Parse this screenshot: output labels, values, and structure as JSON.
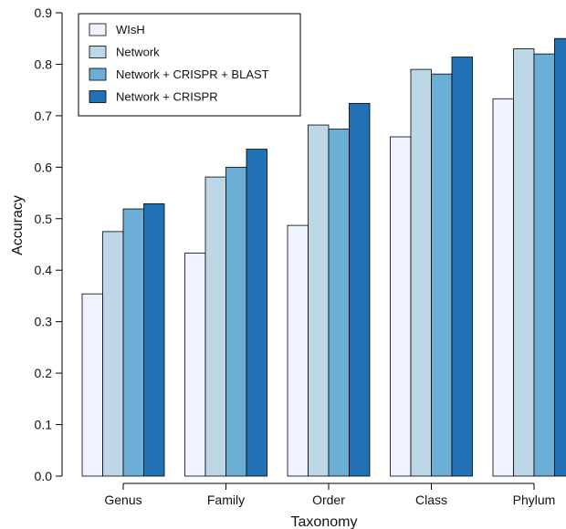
{
  "chart_data": {
    "type": "bar",
    "xlabel": "Taxonomy",
    "ylabel": "Accuracy",
    "ylim": [
      0,
      0.9
    ],
    "yticks": [
      "0.0",
      "0.1",
      "0.2",
      "0.3",
      "0.4",
      "0.5",
      "0.6",
      "0.7",
      "0.8",
      "0.9"
    ],
    "categories": [
      "Genus",
      "Family",
      "Order",
      "Class",
      "Phylum"
    ],
    "grid": false,
    "legend_position": "top-left",
    "series": [
      {
        "name": "WIsH",
        "color": "#eff3ff",
        "values": [
          0.354,
          0.433,
          0.487,
          0.659,
          0.733
        ]
      },
      {
        "name": "Network",
        "color": "#bdd7e7",
        "values": [
          0.475,
          0.581,
          0.682,
          0.79,
          0.83
        ]
      },
      {
        "name": "Network + CRISPR + BLAST",
        "color": "#6baed6",
        "values": [
          0.519,
          0.6,
          0.674,
          0.781,
          0.82
        ]
      },
      {
        "name": "Network + CRISPR",
        "color": "#2171b5",
        "values": [
          0.529,
          0.635,
          0.724,
          0.814,
          0.85
        ]
      }
    ]
  }
}
